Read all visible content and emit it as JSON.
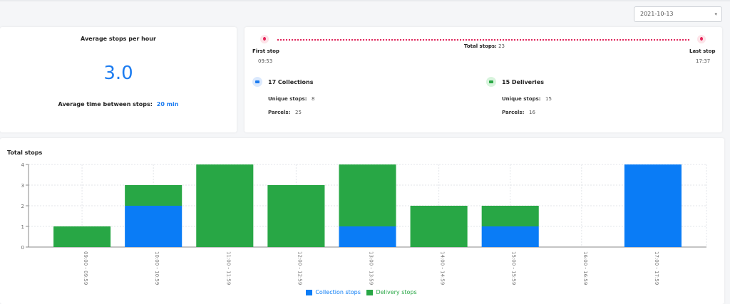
{
  "date_filter": {
    "value": "2021-10-13",
    "caret": "▾"
  },
  "summary": {
    "title": "Average stops per hour",
    "value": "3.0",
    "avg_time_label": "Average time between stops:",
    "avg_time_value": "20 min"
  },
  "route": {
    "first_stop_label": "First stop",
    "first_stop_time": "09:53",
    "total_stops_label": "Total stops:",
    "total_stops_value": "23",
    "last_stop_label": "Last stop",
    "last_stop_time": "17:37",
    "pin_color": "#e5245a"
  },
  "collections": {
    "title": "17 Collections",
    "unique_stops_label": "Unique stops:",
    "unique_stops_value": "8",
    "parcels_label": "Parcels:",
    "parcels_value": "25"
  },
  "deliveries": {
    "title": "15 Deliveries",
    "unique_stops_label": "Unique stops:",
    "unique_stops_value": "15",
    "parcels_label": "Parcels:",
    "parcels_value": "16"
  },
  "chart_data": {
    "type": "bar",
    "stacked": true,
    "title": "Total stops",
    "categories": [
      "09:00 - 09:59",
      "10:00 - 10:59",
      "11:00 - 11:59",
      "12:00 - 12:59",
      "13:00 - 13:59",
      "14:00 - 14:59",
      "15:00 - 15:59",
      "16:00 - 16:59",
      "17:00 - 17:59"
    ],
    "series": [
      {
        "name": "Collection stops",
        "color": "#0a7cf6",
        "values": [
          0,
          2,
          0,
          0,
          1,
          0,
          1,
          0,
          4
        ]
      },
      {
        "name": "Delivery stops",
        "color": "#28a745",
        "values": [
          1,
          1,
          4,
          3,
          3,
          2,
          1,
          0,
          0
        ]
      }
    ],
    "yticks": [
      "0",
      "1",
      "2",
      "3",
      "4"
    ],
    "ylim": [
      0,
      4
    ],
    "grid": true,
    "legend_position": "bottom"
  }
}
